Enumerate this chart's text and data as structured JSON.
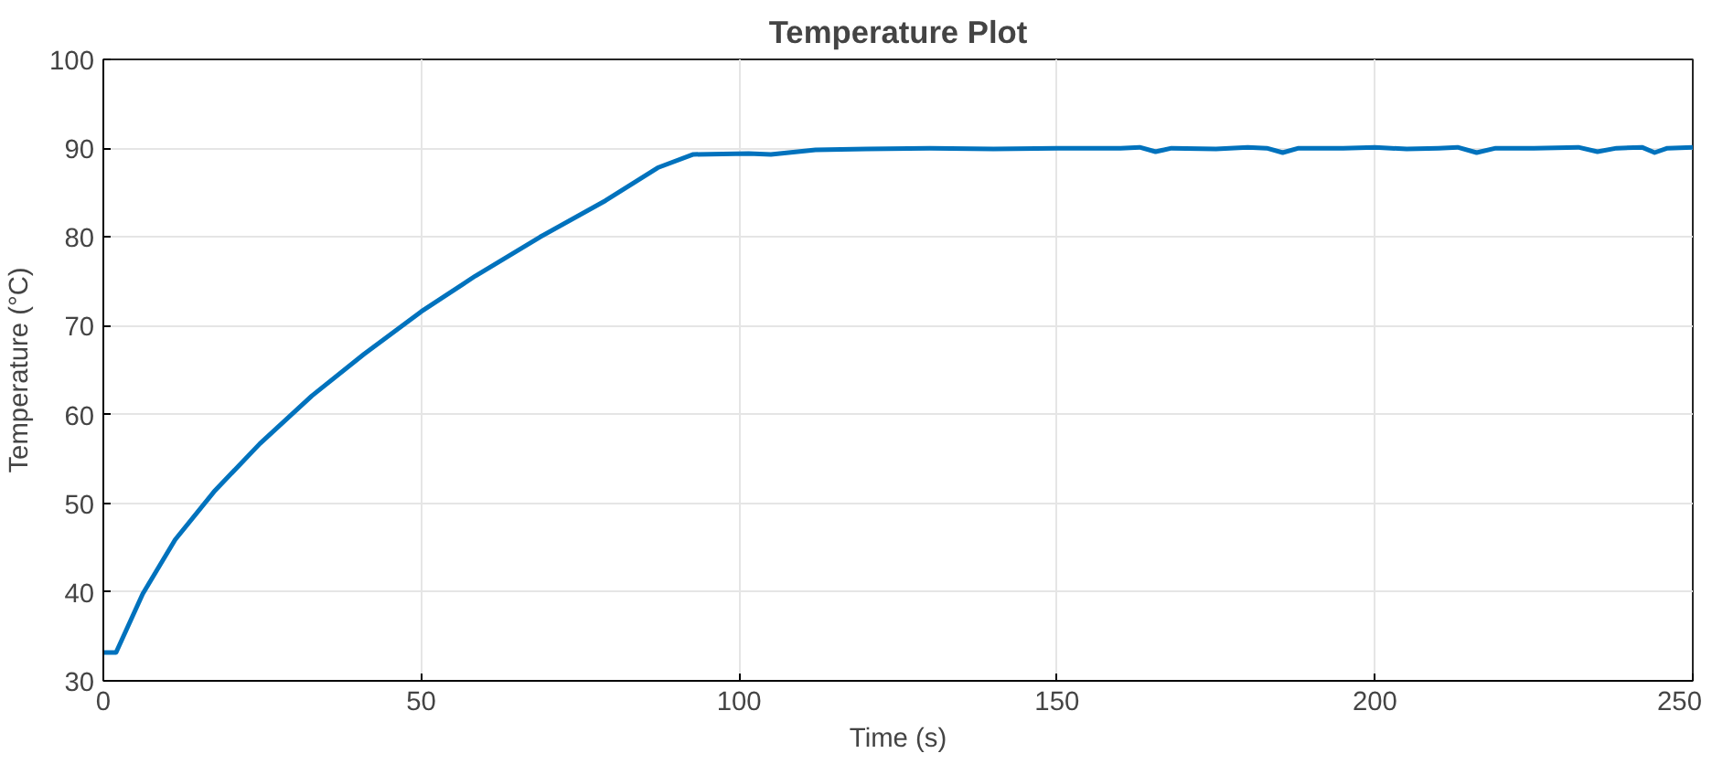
{
  "chart_data": {
    "type": "line",
    "title": "Temperature Plot",
    "xlabel": "Time (s)",
    "ylabel": "Temperature (°C)",
    "x": [
      0,
      2,
      6.2,
      11.3,
      17.4,
      24.6,
      32.8,
      41,
      50,
      58.5,
      68.7,
      79,
      87.2,
      92.8,
      101.5,
      105,
      112,
      120,
      130,
      140,
      150,
      160,
      163,
      165.5,
      168,
      175,
      180,
      183,
      185.5,
      188,
      195,
      200,
      205,
      210,
      213,
      216,
      219,
      225,
      232,
      235,
      238,
      242,
      244,
      246,
      250
    ],
    "series": [
      {
        "color": "#0072bd",
        "values": [
          33.2,
          33.2,
          39.8,
          45.9,
          51.3,
          56.7,
          62.1,
          66.8,
          71.6,
          75.6,
          80,
          84.1,
          87.8,
          89.3,
          89.4,
          89.3,
          89.8,
          89.9,
          90,
          89.9,
          90,
          90,
          90.1,
          89.6,
          90,
          89.9,
          90.1,
          90,
          89.5,
          90,
          90,
          90.1,
          89.9,
          90,
          90.1,
          89.5,
          90,
          90,
          90.1,
          89.6,
          90,
          90.1,
          89.5,
          90,
          90.1
        ]
      }
    ],
    "xlim": [
      0,
      250
    ],
    "ylim": [
      30,
      100
    ],
    "xticks": [
      0,
      50,
      100,
      150,
      200,
      250
    ],
    "yticks": [
      30,
      40,
      50,
      60,
      70,
      80,
      90,
      100
    ],
    "grid": true,
    "line_style": "solid",
    "marker": "none"
  }
}
